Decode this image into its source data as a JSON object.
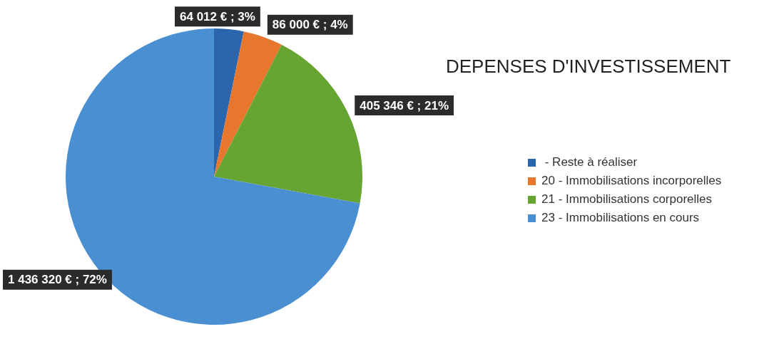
{
  "chart_data": {
    "type": "pie",
    "title": "DEPENSES D'INVESTISSEMENT",
    "categories": [
      " - Reste à réaliser",
      "20 - Immobilisations incorporelles",
      "21 - Immobilisations corporelles",
      "23 - Immobilisations en cours"
    ],
    "values": [
      64012,
      86000,
      405346,
      1436320
    ],
    "value_labels": [
      "64 012 € ; 3%",
      "86 000 € ; 4%",
      "405 346 € ; 21%",
      "1 436 320 € ; 72%"
    ],
    "colors": [
      "#2a66ad",
      "#e8772e",
      "#66a532",
      "#4b8fd3"
    ],
    "legend": "right"
  }
}
